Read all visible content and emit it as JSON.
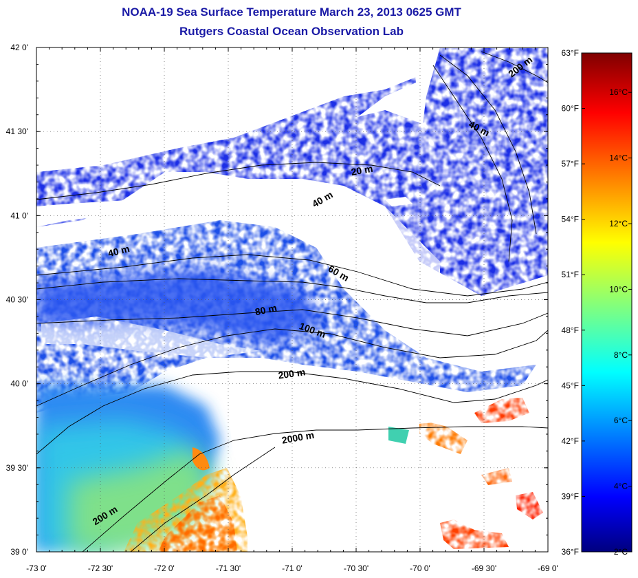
{
  "header": {
    "title": "NOAA-19 Sea Surface Temperature March 23, 2013 0625 GMT",
    "subtitle": "Rutgers Coastal Ocean Observation Lab"
  },
  "map": {
    "lon_range": [
      -73.0,
      -69.0
    ],
    "lat_range": [
      39.0,
      42.0
    ],
    "lon_ticks": [
      "-73 0'",
      "-72 30'",
      "-72 0'",
      "-71 30'",
      "-71 0'",
      "-70 30'",
      "-70 0'",
      "-69 30'",
      "-69 0'"
    ],
    "lat_ticks": [
      "42 0'",
      "41 30'",
      "41 0'",
      "40 30'",
      "40 0'",
      "39 30'",
      "39 0'"
    ],
    "grid": "dotted",
    "land_color": "#ffffff",
    "cloud_color": "#ffffff",
    "contour_labels": [
      {
        "text": "200 m",
        "lon": -69.2,
        "lat": 41.87,
        "angle": -38
      },
      {
        "text": "40 m",
        "lon": -69.55,
        "lat": 41.5,
        "angle": 28
      },
      {
        "text": "20 m",
        "lon": -70.45,
        "lat": 41.25,
        "angle": -10
      },
      {
        "text": "40 m",
        "lon": -70.75,
        "lat": 41.08,
        "angle": -30
      },
      {
        "text": "40 m",
        "lon": -72.35,
        "lat": 40.77,
        "angle": -14
      },
      {
        "text": "60 m",
        "lon": -70.65,
        "lat": 40.64,
        "angle": 30
      },
      {
        "text": "80 m",
        "lon": -71.2,
        "lat": 40.42,
        "angle": -12
      },
      {
        "text": "100 m",
        "lon": -70.85,
        "lat": 40.3,
        "angle": 20
      },
      {
        "text": "200 m",
        "lon": -71.0,
        "lat": 40.04,
        "angle": -8
      },
      {
        "text": "2000 m",
        "lon": -70.95,
        "lat": 39.66,
        "angle": -10
      },
      {
        "text": "200 m",
        "lon": -72.45,
        "lat": 39.2,
        "angle": -32
      }
    ]
  },
  "colorbar": {
    "celsius_labels": [
      "2°C",
      "4°C",
      "6°C",
      "8°C",
      "10°C",
      "12°C",
      "14°C",
      "16°C"
    ],
    "celsius_values": [
      2,
      4,
      6,
      8,
      10,
      12,
      14,
      16
    ],
    "fahrenheit_labels": [
      "36°F",
      "39°F",
      "42°F",
      "45°F",
      "48°F",
      "51°F",
      "54°F",
      "57°F",
      "60°F",
      "63°F"
    ],
    "fahrenheit_values": [
      36,
      39,
      42,
      45,
      48,
      51,
      54,
      57,
      60,
      63
    ],
    "celsius_range": [
      2,
      17.2
    ],
    "fahrenheit_range": [
      36,
      63
    ],
    "colormap": "jet"
  }
}
